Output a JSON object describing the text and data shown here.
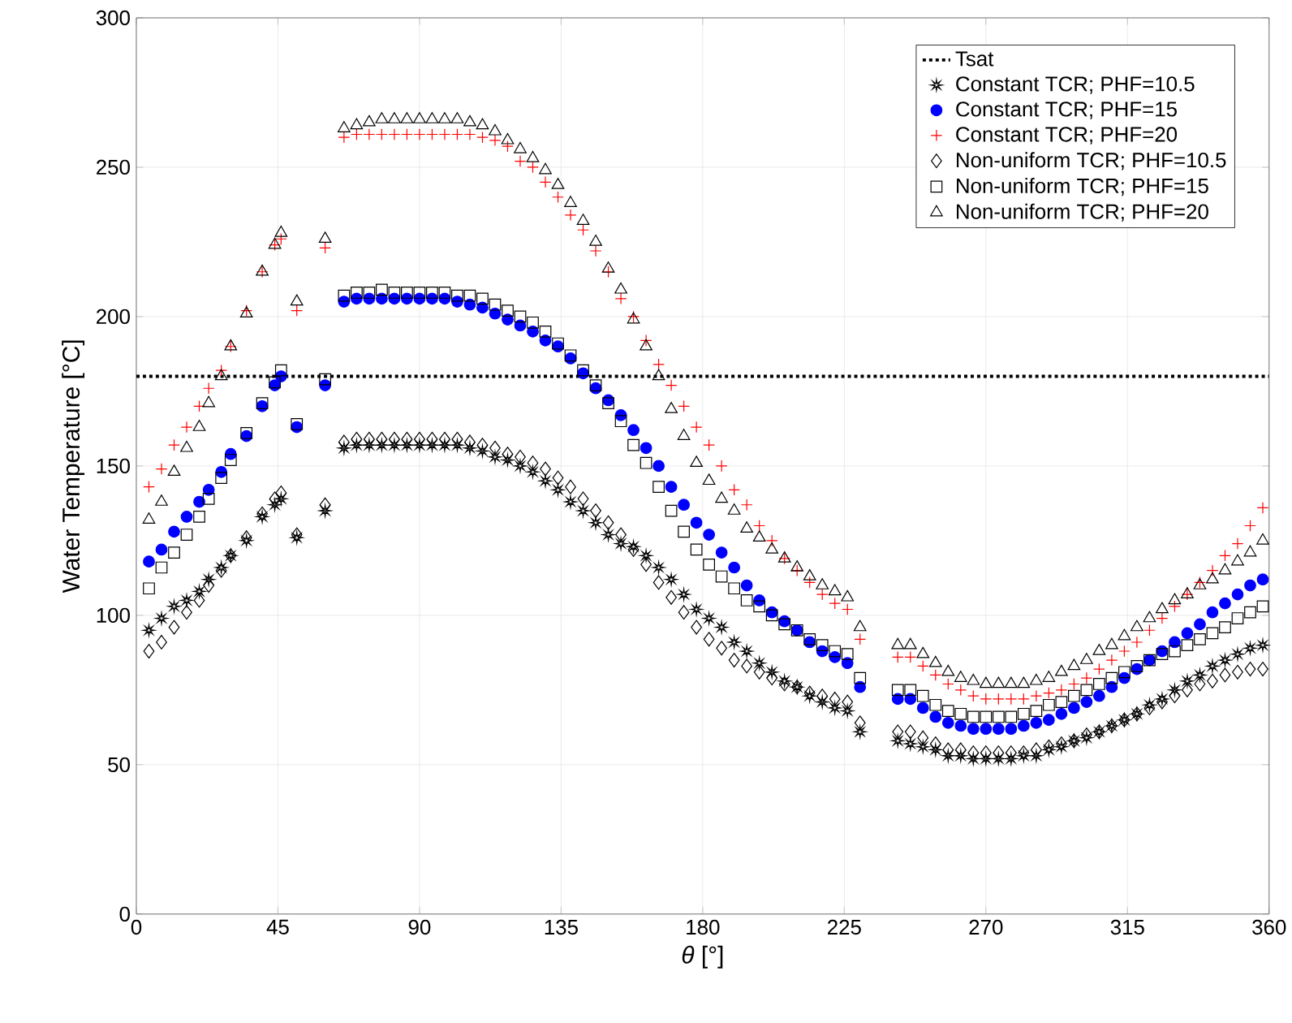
{
  "chart_data": {
    "type": "scatter",
    "xlabel": "*θ* [°]",
    "ylabel": "Water Temperature [°C]",
    "x": [
      4,
      8,
      12,
      16,
      20,
      23,
      27,
      30,
      35,
      40,
      44,
      46,
      51,
      60,
      66,
      70,
      74,
      78,
      82,
      86,
      90,
      94,
      98,
      102,
      106,
      110,
      114,
      118,
      122,
      126,
      130,
      134,
      138,
      142,
      146,
      150,
      154,
      158,
      162,
      166,
      170,
      174,
      178,
      182,
      186,
      190,
      194,
      198,
      202,
      206,
      210,
      214,
      218,
      222,
      226,
      230,
      242,
      246,
      250,
      254,
      258,
      262,
      266,
      270,
      274,
      278,
      282,
      286,
      290,
      294,
      298,
      302,
      306,
      310,
      314,
      318,
      322,
      326,
      330,
      334,
      338,
      342,
      346,
      350,
      354,
      358
    ],
    "series": [
      {
        "name": "Constant TCR; PHF=10.5",
        "color": "#000000",
        "marker": "star",
        "values": [
          95,
          99,
          103,
          105,
          108,
          112,
          116,
          120,
          125,
          133,
          137,
          139,
          126,
          135,
          156,
          157,
          157,
          157,
          157,
          157,
          157,
          157,
          157,
          157,
          156,
          155,
          153,
          152,
          150,
          148,
          145,
          142,
          138,
          135,
          131,
          127,
          124,
          123,
          120,
          116,
          112,
          107,
          102,
          99,
          96,
          91,
          88,
          84,
          81,
          78,
          76,
          73,
          71,
          69,
          68,
          61,
          58,
          57,
          56,
          55,
          53,
          53,
          52,
          52,
          52,
          52,
          53,
          53,
          55,
          56,
          58,
          59,
          61,
          63,
          65,
          67,
          70,
          72,
          75,
          78,
          80,
          83,
          85,
          87,
          89,
          90
        ]
      },
      {
        "name": "Constant TCR; PHF=15",
        "color": "#0000ff",
        "marker": "circle",
        "values": [
          118,
          122,
          128,
          133,
          138,
          142,
          148,
          154,
          160,
          170,
          177,
          180,
          163,
          177,
          205,
          206,
          206,
          206,
          206,
          206,
          206,
          206,
          206,
          205,
          204,
          203,
          201,
          199,
          197,
          195,
          192,
          190,
          186,
          181,
          176,
          172,
          167,
          162,
          156,
          150,
          143,
          137,
          131,
          127,
          121,
          116,
          110,
          105,
          101,
          98,
          95,
          91,
          88,
          86,
          84,
          76,
          72,
          72,
          69,
          66,
          64,
          63,
          62,
          62,
          62,
          62,
          63,
          64,
          65,
          67,
          69,
          71,
          73,
          76,
          79,
          82,
          85,
          88,
          91,
          94,
          97,
          101,
          104,
          107,
          110,
          112
        ]
      },
      {
        "name": "Constant TCR; PHF=20",
        "color": "#ff0000",
        "marker": "cross",
        "values": [
          143,
          149,
          157,
          163,
          170,
          176,
          182,
          190,
          202,
          215,
          224,
          226,
          202,
          223,
          260,
          261,
          261,
          261,
          261,
          261,
          261,
          261,
          261,
          261,
          261,
          260,
          259,
          257,
          252,
          250,
          245,
          240,
          234,
          229,
          222,
          215,
          206,
          200,
          192,
          184,
          177,
          170,
          163,
          157,
          150,
          142,
          137,
          130,
          125,
          119,
          115,
          111,
          107,
          104,
          102,
          92,
          86,
          86,
          83,
          80,
          77,
          75,
          73,
          72,
          72,
          72,
          72,
          73,
          74,
          75,
          77,
          79,
          82,
          85,
          88,
          91,
          95,
          99,
          103,
          107,
          111,
          115,
          120,
          124,
          130,
          136
        ]
      },
      {
        "name": "Non-uniform TCR; PHF=10.5",
        "color": "#000000",
        "marker": "diamond",
        "values": [
          88,
          91,
          96,
          101,
          105,
          110,
          115,
          120,
          126,
          134,
          139,
          141,
          127,
          137,
          158,
          159,
          159,
          159,
          159,
          159,
          159,
          159,
          159,
          159,
          158,
          157,
          156,
          154,
          153,
          151,
          149,
          146,
          143,
          139,
          135,
          131,
          127,
          122,
          117,
          111,
          106,
          101,
          96,
          92,
          89,
          85,
          83,
          81,
          79,
          77,
          76,
          74,
          73,
          72,
          71,
          64,
          61,
          61,
          59,
          57,
          55,
          55,
          54,
          54,
          54,
          54,
          54,
          55,
          56,
          57,
          58,
          60,
          61,
          63,
          65,
          67,
          69,
          71,
          73,
          75,
          77,
          78,
          80,
          81,
          82,
          82
        ]
      },
      {
        "name": "Non-uniform TCR; PHF=15",
        "color": "#000000",
        "marker": "square",
        "values": [
          109,
          116,
          121,
          127,
          133,
          139,
          146,
          152,
          161,
          171,
          178,
          182,
          164,
          179,
          207,
          208,
          208,
          209,
          208,
          208,
          208,
          208,
          208,
          207,
          207,
          206,
          204,
          202,
          200,
          198,
          195,
          191,
          187,
          182,
          177,
          171,
          165,
          157,
          151,
          143,
          135,
          128,
          122,
          117,
          113,
          109,
          105,
          103,
          100,
          97,
          95,
          92,
          90,
          88,
          87,
          79,
          75,
          75,
          73,
          70,
          68,
          67,
          66,
          66,
          66,
          66,
          67,
          68,
          70,
          71,
          73,
          75,
          77,
          79,
          81,
          83,
          85,
          87,
          88,
          90,
          92,
          94,
          96,
          99,
          101,
          103
        ]
      },
      {
        "name": "Non-uniform TCR; PHF=20",
        "color": "#000000",
        "marker": "triangle",
        "values": [
          132,
          138,
          148,
          156,
          163,
          171,
          180,
          190,
          201,
          215,
          224,
          228,
          205,
          226,
          263,
          264,
          265,
          266,
          266,
          266,
          266,
          266,
          266,
          266,
          265,
          264,
          262,
          259,
          256,
          253,
          249,
          244,
          238,
          232,
          225,
          216,
          209,
          199,
          190,
          180,
          169,
          160,
          151,
          145,
          139,
          135,
          129,
          126,
          122,
          119,
          116,
          113,
          110,
          108,
          106,
          96,
          90,
          90,
          87,
          84,
          81,
          79,
          78,
          77,
          77,
          77,
          77,
          78,
          79,
          81,
          83,
          85,
          88,
          90,
          93,
          96,
          99,
          102,
          105,
          107,
          110,
          112,
          115,
          118,
          121,
          125
        ]
      }
    ],
    "ref_lines": [
      {
        "axis": "y",
        "value": 180,
        "label": "Tsat",
        "color": "#000000",
        "line_style": "dotted"
      }
    ],
    "xlim": [
      0,
      360
    ],
    "ylim": [
      0,
      300
    ],
    "xticks": [
      0,
      45,
      90,
      135,
      180,
      225,
      270,
      315,
      360
    ],
    "yticks": [
      0,
      50,
      100,
      150,
      200,
      250,
      300
    ],
    "grid": true,
    "legend": "top right"
  }
}
